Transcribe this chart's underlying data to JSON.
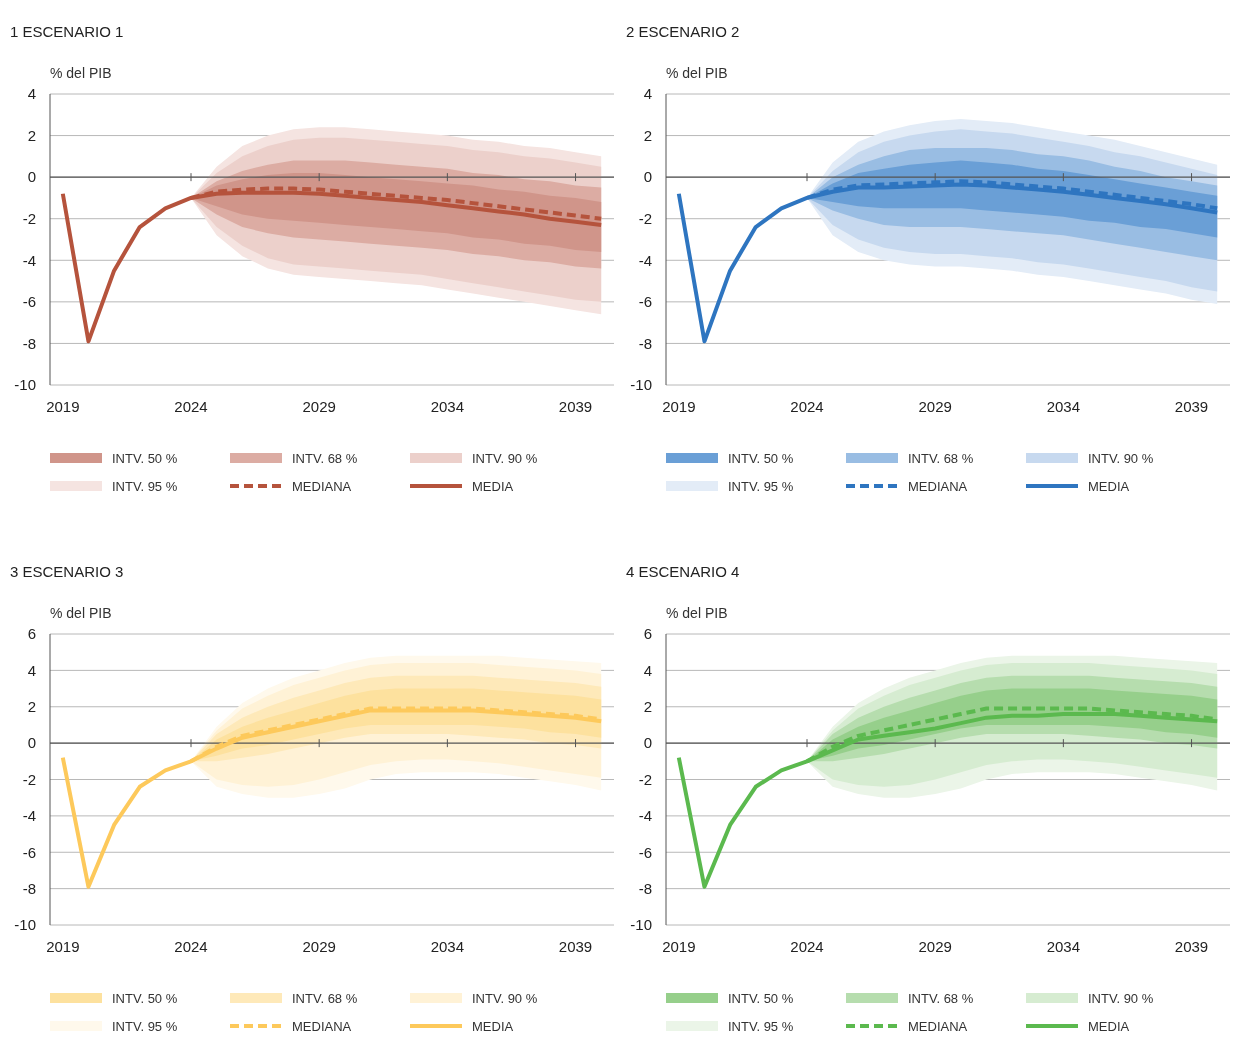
{
  "chart_data": [
    {
      "type": "line",
      "title": "1  ESCENARIO 1",
      "ylabel": "% del PIB",
      "xlim": [
        2018.5,
        2040.5
      ],
      "xticks": [
        2019,
        2024,
        2029,
        2034,
        2039
      ],
      "ylim": [
        -10,
        4
      ],
      "yticks": [
        -10,
        -8,
        -6,
        -4,
        -2,
        0,
        2,
        4
      ],
      "grid": "y",
      "legend": "bottom",
      "series": [
        {
          "name": "INTV. 50 %",
          "color": "#d0958a",
          "x": [
            2024,
            2025,
            2026,
            2027,
            2028,
            2029,
            2030,
            2031,
            2032,
            2033,
            2034,
            2035,
            2036,
            2037,
            2038,
            2039,
            2040
          ],
          "values": [
            null,
            null,
            null,
            null,
            null,
            null,
            null,
            null,
            null,
            null,
            null,
            null,
            null,
            null,
            null,
            null,
            null
          ],
          "lower": [
            -1,
            -1.4,
            -1.8,
            -2.0,
            -2.1,
            -2.2,
            -2.3,
            -2.4,
            -2.5,
            -2.6,
            -2.7,
            -2.9,
            -3.0,
            -3.2,
            -3.3,
            -3.5,
            -3.6
          ],
          "upper": [
            -1,
            -0.4,
            -0.1,
            0.1,
            0.2,
            0.2,
            0.1,
            0.0,
            -0.1,
            -0.2,
            -0.3,
            -0.4,
            -0.6,
            -0.7,
            -0.9,
            -1.0,
            -1.2
          ]
        },
        {
          "name": "INTV. 68 %",
          "color": "#dcaca3",
          "x": [
            2024,
            2025,
            2026,
            2027,
            2028,
            2029,
            2030,
            2031,
            2032,
            2033,
            2034,
            2035,
            2036,
            2037,
            2038,
            2039,
            2040
          ],
          "values": [
            null,
            null,
            null,
            null,
            null,
            null,
            null,
            null,
            null,
            null,
            null,
            null,
            null,
            null,
            null,
            null,
            null
          ],
          "lower": [
            -1,
            -1.8,
            -2.4,
            -2.7,
            -2.9,
            -3.0,
            -3.1,
            -3.2,
            -3.3,
            -3.4,
            -3.5,
            -3.7,
            -3.8,
            -4.0,
            -4.1,
            -4.3,
            -4.4
          ],
          "upper": [
            -1,
            -0.2,
            0.3,
            0.6,
            0.8,
            0.8,
            0.8,
            0.7,
            0.6,
            0.5,
            0.4,
            0.2,
            0.1,
            -0.1,
            -0.2,
            -0.4,
            -0.5
          ]
        },
        {
          "name": "INTV. 90 %",
          "color": "#ecd0cb",
          "x": [
            2024,
            2025,
            2026,
            2027,
            2028,
            2029,
            2030,
            2031,
            2032,
            2033,
            2034,
            2035,
            2036,
            2037,
            2038,
            2039,
            2040
          ],
          "values": [
            null,
            null,
            null,
            null,
            null,
            null,
            null,
            null,
            null,
            null,
            null,
            null,
            null,
            null,
            null,
            null,
            null
          ],
          "lower": [
            -1,
            -2.4,
            -3.3,
            -3.9,
            -4.2,
            -4.3,
            -4.4,
            -4.5,
            -4.6,
            -4.7,
            -4.9,
            -5.1,
            -5.3,
            -5.5,
            -5.7,
            -5.9,
            -6.0
          ],
          "upper": [
            -1,
            0.2,
            1.0,
            1.5,
            1.8,
            1.9,
            1.9,
            1.8,
            1.7,
            1.6,
            1.5,
            1.3,
            1.2,
            1.0,
            0.9,
            0.7,
            0.5
          ]
        },
        {
          "name": "INTV. 95 %",
          "color": "#f5e4e1",
          "x": [
            2024,
            2025,
            2026,
            2027,
            2028,
            2029,
            2030,
            2031,
            2032,
            2033,
            2034,
            2035,
            2036,
            2037,
            2038,
            2039,
            2040
          ],
          "values": [
            null,
            null,
            null,
            null,
            null,
            null,
            null,
            null,
            null,
            null,
            null,
            null,
            null,
            null,
            null,
            null,
            null
          ],
          "lower": [
            -1,
            -2.8,
            -3.8,
            -4.4,
            -4.7,
            -4.8,
            -4.9,
            -5.0,
            -5.1,
            -5.2,
            -5.4,
            -5.6,
            -5.8,
            -6.0,
            -6.2,
            -6.4,
            -6.6
          ],
          "upper": [
            -1,
            0.5,
            1.5,
            2.0,
            2.3,
            2.4,
            2.4,
            2.3,
            2.2,
            2.1,
            2.0,
            1.8,
            1.7,
            1.5,
            1.4,
            1.2,
            1.0
          ]
        },
        {
          "name": "MEDIANA",
          "type": "line",
          "line_style": "dashed",
          "color": "#b5533c",
          "x": [
            2024,
            2025,
            2026,
            2027,
            2028,
            2029,
            2030,
            2031,
            2032,
            2033,
            2034,
            2035,
            2036,
            2037,
            2038,
            2039,
            2040
          ],
          "values": [
            -1.0,
            -0.7,
            -0.6,
            -0.55,
            -0.55,
            -0.6,
            -0.7,
            -0.8,
            -0.9,
            -1.0,
            -1.1,
            -1.25,
            -1.4,
            -1.55,
            -1.7,
            -1.85,
            -2.0
          ]
        },
        {
          "name": "MEDIA",
          "type": "line",
          "line_style": "solid",
          "color": "#b5533c",
          "x": [
            2019,
            2020,
            2021,
            2022,
            2023,
            2024,
            2025,
            2026,
            2027,
            2028,
            2029,
            2030,
            2031,
            2032,
            2033,
            2034,
            2035,
            2036,
            2037,
            2038,
            2039,
            2040
          ],
          "values": [
            -0.8,
            -7.9,
            -4.5,
            -2.4,
            -1.5,
            -1.0,
            -0.8,
            -0.75,
            -0.75,
            -0.75,
            -0.8,
            -0.9,
            -1.0,
            -1.1,
            -1.2,
            -1.35,
            -1.5,
            -1.65,
            -1.8,
            -2.0,
            -2.15,
            -2.3
          ]
        }
      ]
    },
    {
      "type": "line",
      "title": "2  ESCENARIO 2",
      "ylabel": "% del PIB",
      "xlim": [
        2018.5,
        2040.5
      ],
      "xticks": [
        2019,
        2024,
        2029,
        2034,
        2039
      ],
      "ylim": [
        -10,
        4
      ],
      "yticks": [
        -10,
        -8,
        -6,
        -4,
        -2,
        0,
        2,
        4
      ],
      "grid": "y",
      "legend": "bottom",
      "series": [
        {
          "name": "INTV. 50 %",
          "color": "#6a9fd6",
          "x": [
            2024,
            2025,
            2026,
            2027,
            2028,
            2029,
            2030,
            2031,
            2032,
            2033,
            2034,
            2035,
            2036,
            2037,
            2038,
            2039,
            2040
          ],
          "values": [
            null,
            null,
            null,
            null,
            null,
            null,
            null,
            null,
            null,
            null,
            null,
            null,
            null,
            null,
            null,
            null,
            null
          ],
          "lower": [
            -1,
            -1.2,
            -1.4,
            -1.5,
            -1.5,
            -1.5,
            -1.5,
            -1.6,
            -1.7,
            -1.8,
            -1.9,
            -2.1,
            -2.2,
            -2.4,
            -2.5,
            -2.7,
            -2.9
          ],
          "upper": [
            -1,
            -0.3,
            0.2,
            0.4,
            0.6,
            0.7,
            0.8,
            0.7,
            0.6,
            0.4,
            0.3,
            0.1,
            -0.1,
            -0.3,
            -0.5,
            -0.7,
            -0.9
          ]
        },
        {
          "name": "INTV. 68 %",
          "color": "#99bde3",
          "x": [
            2024,
            2025,
            2026,
            2027,
            2028,
            2029,
            2030,
            2031,
            2032,
            2033,
            2034,
            2035,
            2036,
            2037,
            2038,
            2039,
            2040
          ],
          "values": [
            null,
            null,
            null,
            null,
            null,
            null,
            null,
            null,
            null,
            null,
            null,
            null,
            null,
            null,
            null,
            null,
            null
          ],
          "lower": [
            -1,
            -1.6,
            -2.0,
            -2.3,
            -2.4,
            -2.4,
            -2.4,
            -2.5,
            -2.6,
            -2.7,
            -2.8,
            -3.0,
            -3.2,
            -3.4,
            -3.6,
            -3.8,
            -4.0
          ],
          "upper": [
            -1,
            0.0,
            0.6,
            1.0,
            1.3,
            1.4,
            1.4,
            1.4,
            1.3,
            1.1,
            1.0,
            0.8,
            0.5,
            0.3,
            0.0,
            -0.2,
            -0.4
          ]
        },
        {
          "name": "INTV. 90 %",
          "color": "#c7d9ef",
          "x": [
            2024,
            2025,
            2026,
            2027,
            2028,
            2029,
            2030,
            2031,
            2032,
            2033,
            2034,
            2035,
            2036,
            2037,
            2038,
            2039,
            2040
          ],
          "values": [
            null,
            null,
            null,
            null,
            null,
            null,
            null,
            null,
            null,
            null,
            null,
            null,
            null,
            null,
            null,
            null,
            null
          ],
          "lower": [
            -1,
            -2.3,
            -3.0,
            -3.4,
            -3.6,
            -3.7,
            -3.7,
            -3.8,
            -3.9,
            -4.1,
            -4.2,
            -4.4,
            -4.6,
            -4.8,
            -5.0,
            -5.3,
            -5.5
          ],
          "upper": [
            -1,
            0.3,
            1.2,
            1.7,
            2.0,
            2.2,
            2.3,
            2.2,
            2.1,
            1.9,
            1.7,
            1.5,
            1.2,
            1.0,
            0.7,
            0.4,
            0.1
          ]
        },
        {
          "name": "INTV. 95 %",
          "color": "#e3ecf7",
          "x": [
            2024,
            2025,
            2026,
            2027,
            2028,
            2029,
            2030,
            2031,
            2032,
            2033,
            2034,
            2035,
            2036,
            2037,
            2038,
            2039,
            2040
          ],
          "values": [
            null,
            null,
            null,
            null,
            null,
            null,
            null,
            null,
            null,
            null,
            null,
            null,
            null,
            null,
            null,
            null,
            null
          ],
          "lower": [
            -1,
            -2.8,
            -3.6,
            -4.0,
            -4.2,
            -4.3,
            -4.3,
            -4.4,
            -4.5,
            -4.7,
            -4.8,
            -5.0,
            -5.2,
            -5.4,
            -5.6,
            -5.9,
            -6.1
          ],
          "upper": [
            -1,
            0.7,
            1.7,
            2.2,
            2.5,
            2.7,
            2.8,
            2.7,
            2.6,
            2.4,
            2.2,
            2.0,
            1.8,
            1.5,
            1.2,
            0.9,
            0.6
          ]
        },
        {
          "name": "MEDIANA",
          "type": "line",
          "line_style": "dashed",
          "color": "#2e75c0",
          "x": [
            2024,
            2025,
            2026,
            2027,
            2028,
            2029,
            2030,
            2031,
            2032,
            2033,
            2034,
            2035,
            2036,
            2037,
            2038,
            2039,
            2040
          ],
          "values": [
            -1.0,
            -0.6,
            -0.4,
            -0.35,
            -0.3,
            -0.25,
            -0.2,
            -0.25,
            -0.35,
            -0.45,
            -0.55,
            -0.7,
            -0.85,
            -1.0,
            -1.15,
            -1.3,
            -1.5
          ]
        },
        {
          "name": "MEDIA",
          "type": "line",
          "line_style": "solid",
          "color": "#2e75c0",
          "x": [
            2019,
            2020,
            2021,
            2022,
            2023,
            2024,
            2025,
            2026,
            2027,
            2028,
            2029,
            2030,
            2031,
            2032,
            2033,
            2034,
            2035,
            2036,
            2037,
            2038,
            2039,
            2040
          ],
          "values": [
            -0.8,
            -7.9,
            -4.5,
            -2.4,
            -1.5,
            -1.0,
            -0.7,
            -0.5,
            -0.5,
            -0.45,
            -0.4,
            -0.35,
            -0.4,
            -0.5,
            -0.6,
            -0.7,
            -0.85,
            -1.0,
            -1.15,
            -1.3,
            -1.5,
            -1.7
          ]
        }
      ]
    },
    {
      "type": "line",
      "title": "3  ESCENARIO 3",
      "ylabel": "% del PIB",
      "xlim": [
        2018.5,
        2040.5
      ],
      "xticks": [
        2019,
        2024,
        2029,
        2034,
        2039
      ],
      "ylim": [
        -10,
        6
      ],
      "yticks": [
        -10,
        -8,
        -6,
        -4,
        -2,
        0,
        2,
        4,
        6
      ],
      "grid": "y",
      "legend": "bottom",
      "series": [
        {
          "name": "INTV. 50 %",
          "color": "#fde19e",
          "x": [
            2024,
            2025,
            2026,
            2027,
            2028,
            2029,
            2030,
            2031,
            2032,
            2033,
            2034,
            2035,
            2036,
            2037,
            2038,
            2039,
            2040
          ],
          "values": [
            null,
            null,
            null,
            null,
            null,
            null,
            null,
            null,
            null,
            null,
            null,
            null,
            null,
            null,
            null,
            null,
            null
          ],
          "lower": [
            -1,
            -0.7,
            -0.3,
            -0.1,
            0.2,
            0.5,
            0.8,
            1.0,
            1.0,
            1.0,
            1.0,
            1.0,
            0.9,
            0.8,
            0.6,
            0.5,
            0.3
          ],
          "upper": [
            -1,
            0.2,
            0.9,
            1.4,
            1.8,
            2.2,
            2.6,
            2.9,
            3.0,
            3.0,
            3.0,
            3.0,
            2.9,
            2.8,
            2.7,
            2.6,
            2.4
          ]
        },
        {
          "name": "INTV. 68 %",
          "color": "#fee9b9",
          "x": [
            2024,
            2025,
            2026,
            2027,
            2028,
            2029,
            2030,
            2031,
            2032,
            2033,
            2034,
            2035,
            2036,
            2037,
            2038,
            2039,
            2040
          ],
          "values": [
            null,
            null,
            null,
            null,
            null,
            null,
            null,
            null,
            null,
            null,
            null,
            null,
            null,
            null,
            null,
            null,
            null
          ],
          "lower": [
            -1,
            -1.0,
            -0.8,
            -0.6,
            -0.3,
            0.0,
            0.3,
            0.5,
            0.5,
            0.5,
            0.5,
            0.4,
            0.3,
            0.2,
            0.0,
            -0.1,
            -0.3
          ],
          "upper": [
            -1,
            0.5,
            1.4,
            2.0,
            2.5,
            2.9,
            3.3,
            3.6,
            3.7,
            3.7,
            3.7,
            3.7,
            3.6,
            3.5,
            3.4,
            3.3,
            3.1
          ]
        },
        {
          "name": "INTV. 90 %",
          "color": "#fff2d6",
          "x": [
            2024,
            2025,
            2026,
            2027,
            2028,
            2029,
            2030,
            2031,
            2032,
            2033,
            2034,
            2035,
            2036,
            2037,
            2038,
            2039,
            2040
          ],
          "values": [
            null,
            null,
            null,
            null,
            null,
            null,
            null,
            null,
            null,
            null,
            null,
            null,
            null,
            null,
            null,
            null,
            null
          ],
          "lower": [
            -1,
            -2.0,
            -2.3,
            -2.4,
            -2.3,
            -2.0,
            -1.6,
            -1.2,
            -1.0,
            -0.9,
            -0.9,
            -1.0,
            -1.1,
            -1.3,
            -1.5,
            -1.7,
            -1.9
          ],
          "upper": [
            -1,
            0.7,
            1.9,
            2.6,
            3.2,
            3.6,
            4.0,
            4.3,
            4.4,
            4.4,
            4.4,
            4.4,
            4.3,
            4.2,
            4.1,
            4.0,
            3.8
          ]
        },
        {
          "name": "INTV. 95 %",
          "color": "#fff9ec",
          "x": [
            2024,
            2025,
            2026,
            2027,
            2028,
            2029,
            2030,
            2031,
            2032,
            2033,
            2034,
            2035,
            2036,
            2037,
            2038,
            2039,
            2040
          ],
          "values": [
            null,
            null,
            null,
            null,
            null,
            null,
            null,
            null,
            null,
            null,
            null,
            null,
            null,
            null,
            null,
            null,
            null
          ],
          "lower": [
            -1,
            -2.4,
            -2.8,
            -3.0,
            -3.0,
            -2.8,
            -2.5,
            -2.0,
            -1.7,
            -1.6,
            -1.6,
            -1.6,
            -1.7,
            -1.9,
            -2.1,
            -2.3,
            -2.6
          ],
          "upper": [
            -1,
            0.9,
            2.2,
            3.0,
            3.6,
            4.0,
            4.4,
            4.7,
            4.8,
            4.8,
            4.8,
            4.8,
            4.8,
            4.7,
            4.6,
            4.5,
            4.4
          ]
        },
        {
          "name": "MEDIANA",
          "type": "line",
          "line_style": "dashed",
          "color": "#fdc95b",
          "x": [
            2024,
            2025,
            2026,
            2027,
            2028,
            2029,
            2030,
            2031,
            2032,
            2033,
            2034,
            2035,
            2036,
            2037,
            2038,
            2039,
            2040
          ],
          "values": [
            -1.0,
            -0.2,
            0.4,
            0.7,
            1.0,
            1.3,
            1.6,
            1.9,
            1.9,
            1.9,
            1.9,
            1.9,
            1.8,
            1.7,
            1.6,
            1.5,
            1.3
          ]
        },
        {
          "name": "MEDIA",
          "type": "line",
          "line_style": "solid",
          "color": "#fdc95b",
          "x": [
            2019,
            2020,
            2021,
            2022,
            2023,
            2024,
            2025,
            2026,
            2027,
            2028,
            2029,
            2030,
            2031,
            2032,
            2033,
            2034,
            2035,
            2036,
            2037,
            2038,
            2039,
            2040
          ],
          "values": [
            -0.8,
            -7.9,
            -4.5,
            -2.4,
            -1.5,
            -1.0,
            -0.3,
            0.3,
            0.6,
            0.9,
            1.2,
            1.5,
            1.8,
            1.8,
            1.8,
            1.8,
            1.8,
            1.7,
            1.6,
            1.5,
            1.4,
            1.2
          ]
        }
      ]
    },
    {
      "type": "line",
      "title": "4  ESCENARIO 4",
      "ylabel": "% del PIB",
      "xlim": [
        2018.5,
        2040.5
      ],
      "xticks": [
        2019,
        2024,
        2029,
        2034,
        2039
      ],
      "ylim": [
        -10,
        6
      ],
      "yticks": [
        -10,
        -8,
        -6,
        -4,
        -2,
        0,
        2,
        4,
        6
      ],
      "grid": "y",
      "legend": "bottom",
      "series": [
        {
          "name": "INTV. 50 %",
          "color": "#96cf8b",
          "x": [
            2024,
            2025,
            2026,
            2027,
            2028,
            2029,
            2030,
            2031,
            2032,
            2033,
            2034,
            2035,
            2036,
            2037,
            2038,
            2039,
            2040
          ],
          "values": [
            null,
            null,
            null,
            null,
            null,
            null,
            null,
            null,
            null,
            null,
            null,
            null,
            null,
            null,
            null,
            null,
            null
          ],
          "lower": [
            -1,
            -0.7,
            -0.3,
            -0.1,
            0.2,
            0.5,
            0.8,
            1.0,
            1.0,
            1.0,
            1.0,
            1.0,
            0.9,
            0.8,
            0.6,
            0.5,
            0.3
          ],
          "upper": [
            -1,
            0.2,
            0.9,
            1.4,
            1.8,
            2.2,
            2.6,
            2.9,
            3.0,
            3.0,
            3.0,
            3.0,
            2.9,
            2.8,
            2.7,
            2.6,
            2.4
          ]
        },
        {
          "name": "INTV. 68 %",
          "color": "#b6ddae",
          "x": [
            2024,
            2025,
            2026,
            2027,
            2028,
            2029,
            2030,
            2031,
            2032,
            2033,
            2034,
            2035,
            2036,
            2037,
            2038,
            2039,
            2040
          ],
          "values": [
            null,
            null,
            null,
            null,
            null,
            null,
            null,
            null,
            null,
            null,
            null,
            null,
            null,
            null,
            null,
            null,
            null
          ],
          "lower": [
            -1,
            -1.0,
            -0.8,
            -0.6,
            -0.3,
            0.0,
            0.3,
            0.5,
            0.5,
            0.5,
            0.5,
            0.4,
            0.3,
            0.2,
            0.0,
            -0.1,
            -0.3
          ],
          "upper": [
            -1,
            0.5,
            1.4,
            2.0,
            2.5,
            2.9,
            3.3,
            3.6,
            3.7,
            3.7,
            3.7,
            3.7,
            3.6,
            3.5,
            3.4,
            3.3,
            3.1
          ]
        },
        {
          "name": "INTV. 90 %",
          "color": "#d6ecd1",
          "x": [
            2024,
            2025,
            2026,
            2027,
            2028,
            2029,
            2030,
            2031,
            2032,
            2033,
            2034,
            2035,
            2036,
            2037,
            2038,
            2039,
            2040
          ],
          "values": [
            null,
            null,
            null,
            null,
            null,
            null,
            null,
            null,
            null,
            null,
            null,
            null,
            null,
            null,
            null,
            null,
            null
          ],
          "lower": [
            -1,
            -2.0,
            -2.3,
            -2.4,
            -2.3,
            -2.0,
            -1.6,
            -1.2,
            -1.0,
            -0.9,
            -0.9,
            -1.0,
            -1.1,
            -1.3,
            -1.5,
            -1.7,
            -1.9
          ],
          "upper": [
            -1,
            0.7,
            1.9,
            2.6,
            3.2,
            3.6,
            4.0,
            4.3,
            4.4,
            4.4,
            4.4,
            4.4,
            4.3,
            4.2,
            4.1,
            4.0,
            3.8
          ]
        },
        {
          "name": "INTV. 95 %",
          "color": "#ebf5e8",
          "x": [
            2024,
            2025,
            2026,
            2027,
            2028,
            2029,
            2030,
            2031,
            2032,
            2033,
            2034,
            2035,
            2036,
            2037,
            2038,
            2039,
            2040
          ],
          "values": [
            null,
            null,
            null,
            null,
            null,
            null,
            null,
            null,
            null,
            null,
            null,
            null,
            null,
            null,
            null,
            null,
            null
          ],
          "lower": [
            -1,
            -2.4,
            -2.8,
            -3.0,
            -3.0,
            -2.8,
            -2.5,
            -2.0,
            -1.7,
            -1.6,
            -1.6,
            -1.6,
            -1.7,
            -1.9,
            -2.1,
            -2.3,
            -2.6
          ],
          "upper": [
            -1,
            0.9,
            2.2,
            3.0,
            3.6,
            4.0,
            4.4,
            4.7,
            4.8,
            4.8,
            4.8,
            4.8,
            4.8,
            4.7,
            4.6,
            4.5,
            4.4
          ]
        },
        {
          "name": "MEDIANA",
          "type": "line",
          "line_style": "dashed",
          "color": "#5bb94e",
          "x": [
            2024,
            2025,
            2026,
            2027,
            2028,
            2029,
            2030,
            2031,
            2032,
            2033,
            2034,
            2035,
            2036,
            2037,
            2038,
            2039,
            2040
          ],
          "values": [
            -1.0,
            -0.2,
            0.4,
            0.7,
            1.0,
            1.3,
            1.6,
            1.9,
            1.9,
            1.9,
            1.9,
            1.9,
            1.8,
            1.7,
            1.6,
            1.5,
            1.3
          ]
        },
        {
          "name": "MEDIA",
          "type": "line",
          "line_style": "solid",
          "color": "#5bb94e",
          "x": [
            2019,
            2020,
            2021,
            2022,
            2023,
            2024,
            2025,
            2026,
            2027,
            2028,
            2029,
            2030,
            2031,
            2032,
            2033,
            2034,
            2035,
            2036,
            2037,
            2038,
            2039,
            2040
          ],
          "values": [
            -0.8,
            -7.9,
            -4.5,
            -2.4,
            -1.5,
            -1.0,
            -0.4,
            0.2,
            0.4,
            0.6,
            0.8,
            1.1,
            1.4,
            1.5,
            1.5,
            1.6,
            1.6,
            1.6,
            1.5,
            1.4,
            1.3,
            1.2
          ]
        }
      ]
    }
  ]
}
